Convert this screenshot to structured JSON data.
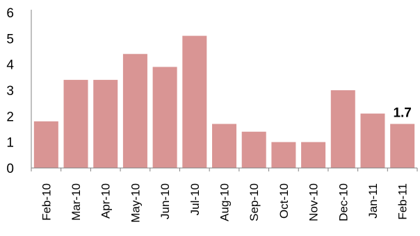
{
  "chart_data": {
    "type": "bar",
    "categories": [
      "Feb-10",
      "Mar-10",
      "Apr-10",
      "May-10",
      "Jun-10",
      "Jul-10",
      "Aug-10",
      "Sep-10",
      "Oct-10",
      "Nov-10",
      "Dec-10",
      "Jan-11",
      "Feb-11"
    ],
    "values": [
      1.8,
      3.4,
      3.4,
      4.4,
      3.9,
      5.1,
      1.7,
      1.4,
      1.0,
      1.0,
      3.0,
      2.1,
      1.7
    ],
    "title": "",
    "xlabel": "",
    "ylabel": "",
    "ylim": [
      0,
      6
    ],
    "yticks": [
      "0",
      "1",
      "2",
      "3",
      "4",
      "5",
      "6"
    ],
    "grid": false,
    "legend": "none",
    "bar_color": "#d99594",
    "data_labels": [
      {
        "category": "Feb-11",
        "text": "1.7"
      }
    ]
  }
}
